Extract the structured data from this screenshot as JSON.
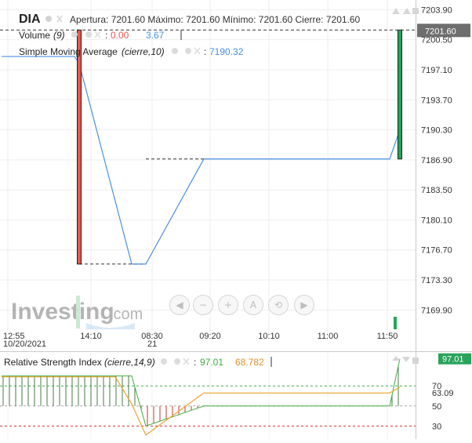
{
  "header": {
    "symbol": "DIA",
    "ohlc": "Apertura: 7201.60 Máximo: 7201.60 Mínimo: 7201.60 Cierre: 7201.60",
    "volume_label": "Volume",
    "volume_param": "(9)",
    "volume_value_1": "0.00",
    "volume_value_2": "3.67",
    "sma_label": "Simple Moving Average",
    "sma_param": "(cierre,10)",
    "sma_value": "7190.32",
    "rsi_label": "Relative Strength Index",
    "rsi_param": "(cierre,14,9)",
    "rsi_value_1": "97.01",
    "rsi_value_2": "68.782"
  },
  "price_axis": {
    "current_price": "7201.60",
    "ticks": [
      "7203.90",
      "7200.50",
      "7197.10",
      "7193.70",
      "7190.30",
      "7186.90",
      "7183.50",
      "7180.10",
      "7176.70",
      "7173.30",
      "7169.90"
    ]
  },
  "time_axis": {
    "labels": [
      {
        "top": "12:55",
        "bottom": "10/20/2021"
      },
      {
        "top": "14:10",
        "bottom": ""
      },
      {
        "top": "08:30",
        "bottom": "21"
      },
      {
        "top": "09:20",
        "bottom": ""
      },
      {
        "top": "10:10",
        "bottom": ""
      },
      {
        "top": "11:00",
        "bottom": ""
      },
      {
        "top": "11:50",
        "bottom": ""
      }
    ]
  },
  "rsi_axis": {
    "current": "97.01",
    "ticks": [
      "70",
      "63.09",
      "50",
      "30"
    ]
  },
  "watermark": {
    "text": "Investing",
    "suffix": ".com"
  },
  "colors": {
    "up": "#27a35a",
    "down": "#e8594f",
    "sma": "#4a90e2",
    "rsi_signal": "#f0a030",
    "level_70": "#3fae3f",
    "level_30": "#d83030",
    "label_bg": "#6e6e6e"
  },
  "chart_data": [
    {
      "type": "line",
      "title": "DIA",
      "yrange": [
        7167.0,
        7205.0
      ],
      "candles": [
        {
          "x": "10/20/2021 13:05",
          "open": 7201.6,
          "high": 7201.6,
          "low": 7175.1,
          "close": 7175.1,
          "direction": "down"
        },
        {
          "x": "10/21/2021 11:55",
          "open": 7187.0,
          "high": 7201.6,
          "low": 7187.0,
          "close": 7201.6,
          "direction": "up"
        }
      ],
      "dashed_levels": [
        {
          "from": "10/20/2021 13:05",
          "to": "10/21/2021 08:20",
          "y": 7175.1
        },
        {
          "from": "10/21/2021 08:30",
          "to": "10/21/2021 09:10",
          "y": 7187.0
        },
        {
          "from": "10/20/2021 12:55",
          "to": "10/21/2021 11:55",
          "y": 7201.6
        }
      ],
      "series": [
        {
          "name": "Simple Moving Average",
          "x": [
            "10/20/2021 12:55",
            "10/20/2021 13:00",
            "10/20/2021 13:05",
            "10/20/2021 14:00",
            "10/21/2021 08:30",
            "10/21/2021 09:20",
            "10/21/2021 11:50",
            "10/21/2021 11:55"
          ],
          "values": [
            7198.6,
            7198.6,
            7197.8,
            7175.1,
            7175.1,
            7187.0,
            7187.0,
            7190.3
          ]
        }
      ],
      "volume": [
        {
          "x": "10/21/2021 11:55",
          "value": 3.67
        }
      ]
    },
    {
      "type": "line",
      "title": "Relative Strength Index",
      "yrange": [
        17,
        103
      ],
      "levels": [
        70,
        50,
        30
      ],
      "series": [
        {
          "name": "Relative Strength Index",
          "x": [
            "10/20/2021 12:55",
            "10/20/2021 14:00",
            "10/21/2021 08:20",
            "10/21/2021 08:30",
            "10/21/2021 09:10",
            "10/21/2021 09:20",
            "10/21/2021 11:50",
            "10/21/2021 11:55"
          ],
          "values": [
            80,
            80,
            30,
            30,
            50,
            50,
            50,
            97.01
          ]
        },
        {
          "name": "Signal",
          "x": [
            "10/20/2021 12:55",
            "10/20/2021 13:45",
            "10/20/2021 14:15",
            "10/21/2021 08:30",
            "10/21/2021 09:20",
            "10/21/2021 11:50",
            "10/21/2021 11:55"
          ],
          "values": [
            79,
            79,
            52,
            21,
            63,
            63,
            68.782
          ]
        }
      ]
    }
  ]
}
